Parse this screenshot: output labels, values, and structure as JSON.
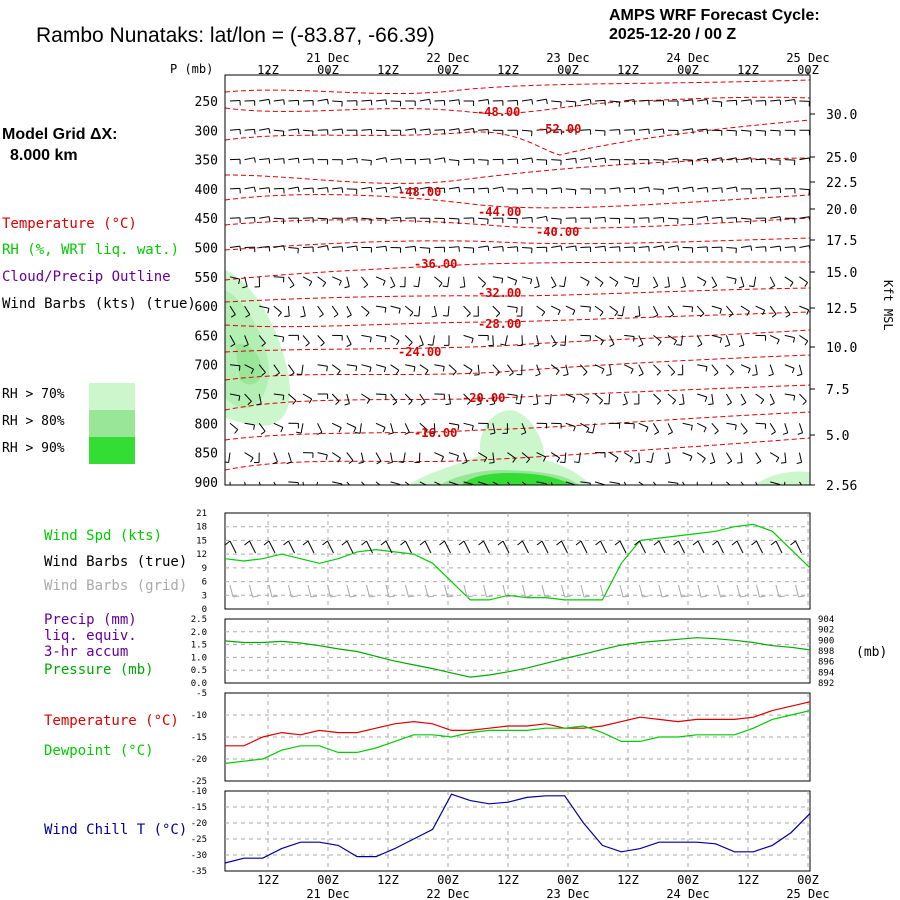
{
  "header": {
    "title": "Rambo Nunataks:  lat/lon = (-83.87, -66.39)",
    "cycle_line1": "AMPS WRF Forecast Cycle:",
    "cycle_line2": "2025-12-20 / 00  Z"
  },
  "model_grid": {
    "label": "Model Grid ΔX:",
    "value": "8.000 km"
  },
  "legend_top": {
    "temperature": "Temperature (°C)",
    "rh": "RH (%, WRT liq. wat.)",
    "cloud": "Cloud/Precip Outline",
    "barbs": "Wind Barbs (kts) (true)"
  },
  "rh_legend": [
    {
      "label": "RH > 70%",
      "color": "#ccf7cc"
    },
    {
      "label": "RH > 80%",
      "color": "#99e699"
    },
    {
      "label": "RH > 90%",
      "color": "#33dd33"
    }
  ],
  "p_axis_label": "P (mb)",
  "kft_axis_label": "Kft MSL",
  "time_axis": {
    "labels": [
      "12Z",
      "00Z",
      "12Z",
      "00Z",
      "12Z",
      "00Z",
      "12Z",
      "00Z",
      "12Z",
      "00Z"
    ],
    "dates": [
      "21 Dec",
      "22 Dec",
      "23 Dec",
      "24 Dec",
      "25 Dec"
    ]
  },
  "pressure_levels": [
    "250",
    "300",
    "350",
    "400",
    "450",
    "500",
    "550",
    "600",
    "650",
    "700",
    "750",
    "800",
    "850",
    "900"
  ],
  "kft_labels": [
    "30.0",
    "25.0",
    "22.5",
    "20.0",
    "17.5",
    "15.0",
    "12.5",
    "10.0",
    "7.5",
    "5.0",
    "2.56"
  ],
  "colors": {
    "temperature": "#dd0000",
    "rh": "#00cc00",
    "cloud": "#660099",
    "wind_speed": "#00cc00",
    "pressure": "#00aa00",
    "dewpoint": "#00cc00",
    "wind_chill": "#000099",
    "grid_barbs": "#aaaaaa"
  },
  "panels": {
    "wind": {
      "labels": [
        "Wind Spd (kts)",
        "Wind Barbs (true)",
        "Wind Barbs (grid)"
      ],
      "yticks": [
        "21",
        "18",
        "15",
        "12",
        "9",
        "6",
        "3",
        "0"
      ]
    },
    "precip": {
      "labels": [
        "Precip (mm)",
        "liq. equiv.",
        "3-hr accum",
        "Pressure (mb)"
      ],
      "yticks": [
        "2.5",
        "2.0",
        "1.5",
        "1.0",
        "0.5",
        "0.0"
      ],
      "right_ticks": [
        "904",
        "902",
        "900",
        "898",
        "896",
        "894",
        "892"
      ],
      "right_unit": "(mb)"
    },
    "temp": {
      "labels": [
        "Temperature (°C)",
        "Dewpoint (°C)"
      ],
      "yticks": [
        "-5",
        "-10",
        "-15",
        "-20",
        "-25"
      ]
    },
    "chill": {
      "labels": [
        "Wind Chill T (°C)"
      ],
      "yticks": [
        "-10",
        "-15",
        "-20",
        "-25",
        "-30",
        "-35"
      ]
    }
  },
  "chart_data": [
    {
      "type": "heatmap",
      "title": "Rambo Nunataks:  lat/lon = (-83.87, -66.39)",
      "ylabel": "P (mb)",
      "y_right_label": "Kft MSL",
      "x_ticks": [
        "12Z",
        "00Z",
        "12Z",
        "00Z",
        "12Z",
        "00Z",
        "12Z",
        "00Z",
        "12Z",
        "00Z"
      ],
      "x_dates": [
        "21 Dec",
        "22 Dec",
        "23 Dec",
        "24 Dec",
        "25 Dec"
      ],
      "ylim": [
        900,
        250
      ],
      "temperature_contour_labels": [
        "-48.00",
        "-52.00",
        "-48.00",
        "-44.00",
        "-40.00",
        "-36.00",
        "-32.00",
        "-28.00",
        "-24.00",
        "-20.00",
        "-16.00"
      ]
    },
    {
      "type": "line",
      "series": [
        {
          "name": "Wind Spd (kts)",
          "values": [
            11,
            10.5,
            11,
            12,
            11,
            10,
            11,
            12.5,
            13,
            12.5,
            12,
            10,
            6,
            2,
            2,
            3,
            2.5,
            2.5,
            2,
            2,
            2,
            10,
            15,
            15.5,
            16,
            16.5,
            17,
            18,
            18.5,
            17,
            13,
            9
          ]
        }
      ],
      "ylim": [
        0,
        21
      ]
    },
    {
      "type": "line",
      "series": [
        {
          "name": "Precip (mm)",
          "values": []
        },
        {
          "name": "Pressure (mb)",
          "values": [
            899.9,
            899.6,
            899.6,
            899.8,
            899.5,
            899.0,
            898.4,
            897.9,
            897.0,
            896.1,
            895.4,
            894.7,
            893.9,
            893.1,
            893.5,
            894.1,
            894.8,
            895.7,
            896.6,
            897.4,
            898.3,
            899.1,
            899.6,
            899.9,
            900.2,
            900.5,
            900.3,
            900.0,
            899.6,
            899.0,
            898.7,
            898.2
          ]
        }
      ],
      "ylim": [
        0,
        2.5
      ],
      "y2lim": [
        892,
        904
      ]
    },
    {
      "type": "line",
      "series": [
        {
          "name": "Temperature (°C)",
          "values": [
            -17,
            -17,
            -15,
            -14,
            -14.5,
            -13.5,
            -14,
            -14,
            -13,
            -12,
            -11.5,
            -12,
            -13.5,
            -13.5,
            -13,
            -12.5,
            -12.5,
            -12,
            -13,
            -13,
            -12.5,
            -11.5,
            -10.5,
            -11,
            -11.5,
            -11,
            -11,
            -11,
            -10.5,
            -9,
            -8,
            -7
          ]
        },
        {
          "name": "Dewpoint (°C)",
          "values": [
            -21,
            -20.5,
            -20,
            -18,
            -17,
            -17,
            -18.5,
            -18.5,
            -17.5,
            -16,
            -14.5,
            -14.5,
            -15,
            -14,
            -13.5,
            -13.5,
            -13.5,
            -13,
            -13,
            -12.5,
            -14,
            -16,
            -16,
            -15,
            -15,
            -14.5,
            -14.5,
            -14.5,
            -13,
            -11,
            -10,
            -9
          ]
        }
      ],
      "ylim": [
        -25,
        -5
      ]
    },
    {
      "type": "line",
      "series": [
        {
          "name": "Wind Chill T (°C)",
          "values": [
            -32.5,
            -31,
            -31,
            -28,
            -26,
            -26,
            -27,
            -30.5,
            -30.5,
            -28,
            -25,
            -22,
            -11,
            -13,
            -14,
            -13.5,
            -12,
            -11.5,
            -11.5,
            -20,
            -27,
            -29,
            -28,
            -26,
            -26,
            -26,
            -26.5,
            -29,
            -29,
            -27,
            -23,
            -17
          ]
        }
      ],
      "ylim": [
        -35,
        -10
      ]
    }
  ]
}
